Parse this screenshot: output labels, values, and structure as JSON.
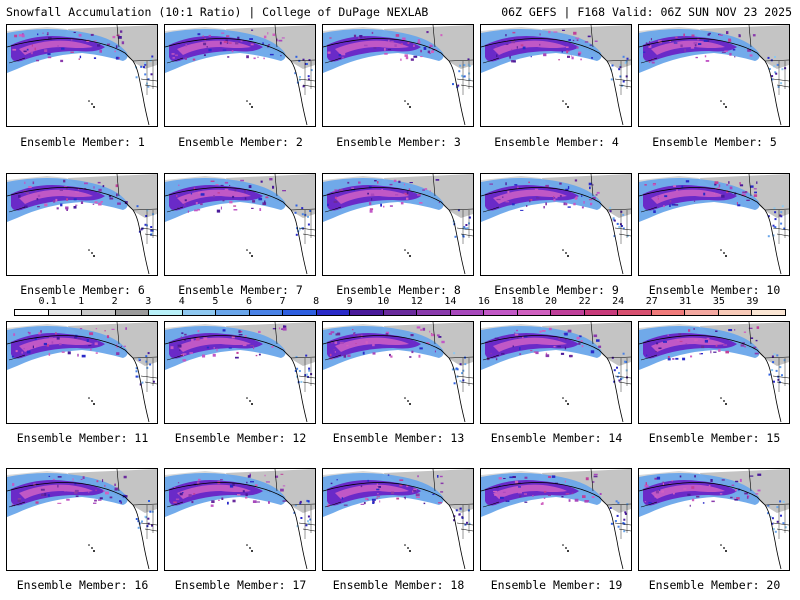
{
  "header": {
    "title": "Snowfall Accumulation (10:1 Ratio) | College of DuPage NEXLAB",
    "run_info": "06Z GEFS | F168 Valid: 06Z SUN NOV 23 2025"
  },
  "panels": [
    {
      "label": "Ensemble Member: 1"
    },
    {
      "label": "Ensemble Member: 2"
    },
    {
      "label": "Ensemble Member: 3"
    },
    {
      "label": "Ensemble Member: 4"
    },
    {
      "label": "Ensemble Member: 5"
    },
    {
      "label": "Ensemble Member: 6"
    },
    {
      "label": "Ensemble Member: 7"
    },
    {
      "label": "Ensemble Member: 8"
    },
    {
      "label": "Ensemble Member: 9"
    },
    {
      "label": "Ensemble Member: 10"
    },
    {
      "label": "Ensemble Member: 11"
    },
    {
      "label": "Ensemble Member: 12"
    },
    {
      "label": "Ensemble Member: 13"
    },
    {
      "label": "Ensemble Member: 14"
    },
    {
      "label": "Ensemble Member: 15"
    },
    {
      "label": "Ensemble Member: 16"
    },
    {
      "label": "Ensemble Member: 17"
    },
    {
      "label": "Ensemble Member: 18"
    },
    {
      "label": "Ensemble Member: 19"
    },
    {
      "label": "Ensemble Member: 20"
    }
  ],
  "legend": {
    "ticks": [
      "0.1",
      "1",
      "2",
      "3",
      "4",
      "5",
      "6",
      "7",
      "8",
      "9",
      "10",
      "12",
      "14",
      "16",
      "18",
      "20",
      "22",
      "24",
      "27",
      "31",
      "35",
      "39"
    ],
    "colors": [
      "#ffffff",
      "#e6e6e6",
      "#c9c9c9",
      "#9b9b9b",
      "#b8f0f8",
      "#8ec8f0",
      "#6aa6ea",
      "#4a82e6",
      "#2e5fe0",
      "#2a2ac8",
      "#4a1a9a",
      "#6a2a9c",
      "#8a3aac",
      "#a848bc",
      "#c258c6",
      "#d060c0",
      "#c0409a",
      "#c83a7a",
      "#d85070",
      "#f07a7a",
      "#f4a8a0",
      "#f8cab8",
      "#fbe6d4"
    ]
  }
}
